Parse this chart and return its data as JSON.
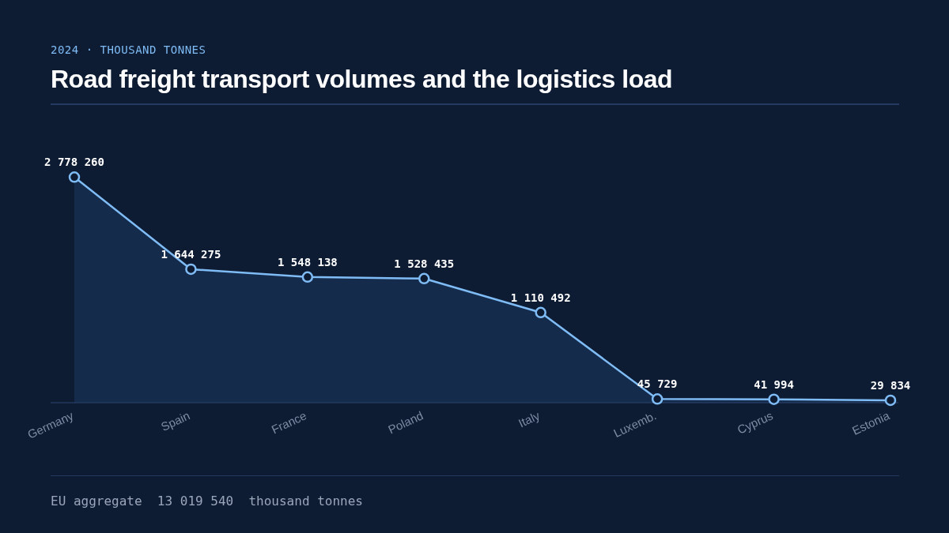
{
  "chart_data": {
    "type": "area",
    "subtitle": "2024 · THOUSAND TONNES",
    "title": "Road freight transport volumes and the logistics load",
    "categories": [
      "Germany",
      "Spain",
      "France",
      "Poland",
      "Italy",
      "Luxemb.",
      "Cyprus",
      "Estonia"
    ],
    "series": [
      {
        "color": "#7fbcf5",
        "values": [
          2778260,
          1644275,
          1548138,
          1528435,
          1110492,
          45729,
          41994,
          29834
        ]
      }
    ],
    "marker": "circle",
    "data_labels": true,
    "grid": false,
    "annotations": [
      "EU aggregate  13 019 540  thousand tonnes"
    ]
  }
}
